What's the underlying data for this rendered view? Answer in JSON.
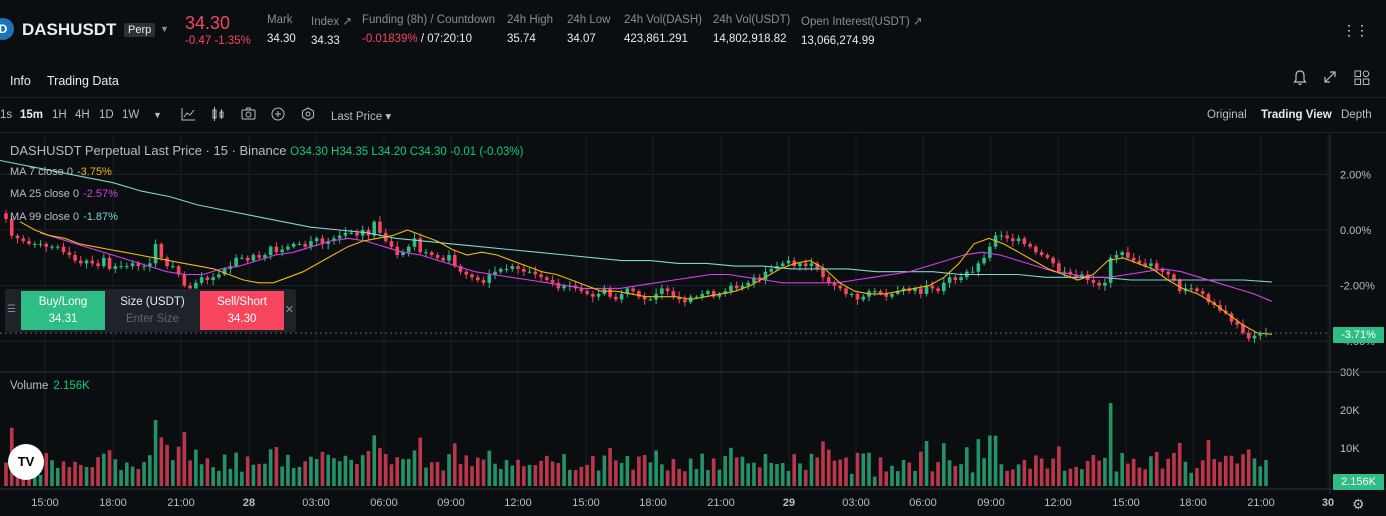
{
  "header": {
    "logo_glyph": "D",
    "symbol": "DASHUSDT",
    "badge": "Perp",
    "last_price": "34.30",
    "change": "-0.47",
    "change_pct": "-1.35%",
    "stats": [
      {
        "label": "Mark",
        "value": "34.30"
      },
      {
        "label": "Index ↗",
        "value": "34.33"
      },
      {
        "label": "Funding (8h) / Countdown",
        "value_neg": "-0.01839%",
        "value": " / 07:20:10"
      },
      {
        "label": "24h High",
        "value": "35.74"
      },
      {
        "label": "24h Low",
        "value": "34.07"
      },
      {
        "label": "24h Vol(DASH)",
        "value": "423,861.291"
      },
      {
        "label": "24h Vol(USDT)",
        "value": "14,802,918.82"
      },
      {
        "label": "Open Interest(USDT) ↗",
        "value": "13,066,274.99"
      }
    ]
  },
  "tabs": {
    "info": "Info",
    "trading_data": "Trading Data"
  },
  "toolbar": {
    "timeframes": [
      "1s",
      "15m",
      "1H",
      "4H",
      "1D",
      "1W"
    ],
    "active_timeframe": "15m",
    "price_type": "Last Price ▾",
    "views": [
      "Original",
      "Trading View",
      "Depth"
    ],
    "active_view": "Trading View"
  },
  "legend": {
    "title": "DASHUSDT Perpetual Last Price · 15 · Binance",
    "ohlc": "O34.30 H34.35 L34.20 C34.30 -0.01 (-0.03%)",
    "ma": [
      {
        "label": "MA 7 close 0",
        "value": "-3.75%",
        "color": "#f0b90b"
      },
      {
        "label": "MA 25 close 0",
        "value": "-2.57%",
        "color": "#d43ee8"
      },
      {
        "label": "MA 99 close 0",
        "value": "-1.87%",
        "color": "#7ad7d0"
      }
    ],
    "volume_label": "Volume",
    "volume_value": "2.156K"
  },
  "order_panel": {
    "buy_label": "Buy/Long",
    "buy_price": "34.31",
    "size_label": "Size (USDT)",
    "size_placeholder": "Enter Size",
    "sell_label": "Sell/Short",
    "sell_price": "34.30"
  },
  "price_axis": [
    "2.00%",
    "0.00%",
    "-2.00%",
    "-4.00%"
  ],
  "volume_axis": [
    "30K",
    "20K",
    "10K"
  ],
  "current_tag": "-3.71%",
  "volume_tag": "2.156K",
  "time_axis": [
    "15:00",
    "18:00",
    "21:00",
    "28",
    "03:00",
    "06:00",
    "09:00",
    "12:00",
    "15:00",
    "18:00",
    "21:00",
    "29",
    "03:00",
    "06:00",
    "09:00",
    "12:00",
    "15:00",
    "18:00",
    "21:00",
    "30"
  ],
  "colors": {
    "up": "#2ebd85",
    "down": "#f6465d",
    "ma7": "#f0b90b",
    "ma25": "#d43ee8",
    "ma99": "#7ad7d0"
  },
  "chart_data": {
    "type": "candlestick",
    "y_unit": "percent change",
    "y_ticks": [
      2.0,
      0.0,
      -2.0,
      -4.0
    ],
    "current_value": -3.71,
    "series_close_pct": [
      0.4,
      -0.2,
      -0.3,
      -0.4,
      -0.5,
      -0.5,
      -0.5,
      -0.6,
      -0.6,
      -0.6,
      -0.8,
      -0.9,
      -1.1,
      -1.2,
      -1.1,
      -1.2,
      -1.3,
      -1.0,
      -1.4,
      -1.3,
      -1.3,
      -1.3,
      -1.2,
      -1.3,
      -1.3,
      -1.2,
      -0.5,
      -1.0,
      -1.3,
      -1.3,
      -1.6,
      -2.0,
      -2.1,
      -1.9,
      -1.7,
      -1.8,
      -1.7,
      -1.6,
      -1.4,
      -1.3,
      -1.0,
      -1.0,
      -1.1,
      -0.9,
      -1.0,
      -0.9,
      -0.6,
      -0.8,
      -0.7,
      -0.6,
      -0.5,
      -0.5,
      -0.6,
      -0.4,
      -0.3,
      -0.5,
      -0.4,
      -0.3,
      -0.2,
      -0.1,
      -0.1,
      -0.2,
      -0.0,
      -0.2,
      0.3,
      -0.1,
      -0.4,
      -0.6,
      -0.9,
      -0.8,
      -0.6,
      -0.3,
      -0.8,
      -0.8,
      -0.9,
      -1.0,
      -1.1,
      -0.9,
      -1.3,
      -1.5,
      -1.6,
      -1.7,
      -1.8,
      -1.9,
      -1.6,
      -1.5,
      -1.4,
      -1.4,
      -1.3,
      -1.4,
      -1.5,
      -1.5,
      -1.6,
      -1.7,
      -1.8,
      -1.9,
      -2.1,
      -2.0,
      -2.0,
      -2.1,
      -2.2,
      -2.3,
      -2.4,
      -2.3,
      -2.1,
      -2.4,
      -2.5,
      -2.3,
      -2.1,
      -2.2,
      -2.4,
      -2.5,
      -2.5,
      -2.3,
      -2.1,
      -2.2,
      -2.4,
      -2.5,
      -2.6,
      -2.4,
      -2.4,
      -2.3,
      -2.2,
      -2.4,
      -2.3,
      -2.2,
      -2.0,
      -2.1,
      -2.0,
      -1.9,
      -1.7,
      -1.8,
      -1.5,
      -1.4,
      -1.3,
      -1.2,
      -1.1,
      -1.3,
      -1.2,
      -1.3,
      -1.2,
      -1.4,
      -1.7,
      -1.9,
      -2.0,
      -2.1,
      -2.3,
      -2.3,
      -2.5,
      -2.4,
      -2.2,
      -2.2,
      -2.3,
      -2.4,
      -2.3,
      -2.2,
      -2.1,
      -2.2,
      -2.1,
      -2.3,
      -2.0,
      -2.1,
      -2.2,
      -1.9,
      -1.7,
      -1.8,
      -1.7,
      -1.5,
      -1.5,
      -1.2,
      -1.0,
      -0.6,
      -0.2,
      -0.2,
      -0.3,
      -0.4,
      -0.3,
      -0.5,
      -0.6,
      -0.8,
      -0.9,
      -1.0,
      -1.2,
      -1.5,
      -1.5,
      -1.6,
      -1.7,
      -1.6,
      -1.8,
      -1.9,
      -2.0,
      -1.9,
      -1.0,
      -0.9,
      -0.8,
      -1.0,
      -1.1,
      -1.2,
      -1.3,
      -1.2,
      -1.4,
      -1.5,
      -1.6,
      -1.8,
      -2.2,
      -2.1,
      -2.1,
      -2.2,
      -2.3,
      -2.6,
      -2.7,
      -2.9,
      -3.0,
      -3.3,
      -3.4,
      -3.7,
      -3.9,
      -3.8,
      -3.7,
      -3.7
    ],
    "ma7_pct": [
      0.3,
      0.0,
      -0.2,
      -0.3,
      -0.5,
      -0.6,
      -0.7,
      -0.8,
      -0.9,
      -1.0,
      -1.1,
      -1.2,
      -1.3,
      -1.4,
      -1.6,
      -1.8,
      -1.9,
      -1.9,
      -1.7,
      -1.5,
      -1.2,
      -0.9,
      -0.6,
      -0.4,
      -0.3,
      -0.2,
      0.0,
      -0.2,
      -0.4,
      -0.7,
      -0.9,
      -0.8,
      -0.9,
      -1.1,
      -1.3,
      -1.5,
      -1.6,
      -1.8,
      -2.0,
      -2.2,
      -2.2,
      -2.3,
      -2.4,
      -2.4,
      -2.4,
      -2.5,
      -2.4,
      -2.3,
      -2.2,
      -2.0,
      -1.7,
      -1.4,
      -1.2,
      -1.1,
      -1.4,
      -1.9,
      -2.2,
      -2.3,
      -2.3,
      -2.2,
      -2.1,
      -2.0,
      -1.7,
      -1.2,
      -0.5,
      -0.3,
      -0.5,
      -0.8,
      -1.1,
      -1.4,
      -1.6,
      -1.8,
      -1.6,
      -1.1,
      -1.0,
      -1.2,
      -1.4,
      -1.8,
      -2.1,
      -2.3,
      -2.6,
      -3.0,
      -3.4,
      -3.7,
      -3.75
    ],
    "ma25_pct": [
      -0.1,
      -0.3,
      -0.5,
      -0.7,
      -0.9,
      -1.1,
      -1.3,
      -1.5,
      -1.6,
      -1.6,
      -1.4,
      -1.3,
      -1.1,
      -0.9,
      -0.8,
      -0.6,
      -0.4,
      -0.3,
      -0.4,
      -0.6,
      -0.8,
      -0.9,
      -1.1,
      -1.3,
      -1.5,
      -1.6,
      -1.7,
      -1.8,
      -1.9,
      -2.0,
      -2.1,
      -2.1,
      -2.1,
      -2.0,
      -1.9,
      -1.8,
      -1.7,
      -1.6,
      -1.6,
      -1.7,
      -1.8,
      -1.9,
      -1.9,
      -1.9,
      -1.9,
      -1.8,
      -1.7,
      -1.6,
      -1.5,
      -1.3,
      -1.1,
      -0.9,
      -0.8,
      -0.9,
      -1.1,
      -1.3,
      -1.5,
      -1.6,
      -1.7,
      -1.7,
      -1.6,
      -1.5,
      -1.4,
      -1.5,
      -1.7,
      -1.9,
      -2.1,
      -2.3,
      -2.57
    ],
    "ma99_pct": [
      2.5,
      2.3,
      2.1,
      1.9,
      1.7,
      1.4,
      1.2,
      0.9,
      0.7,
      0.5,
      0.3,
      0.1,
      0.0,
      -0.1,
      -0.3,
      -0.4,
      -0.5,
      -0.6,
      -0.7,
      -0.8,
      -0.9,
      -1.0,
      -1.1,
      -1.1,
      -1.2,
      -1.2,
      -1.3,
      -1.3,
      -1.4,
      -1.4,
      -1.4,
      -1.5,
      -1.5,
      -1.5,
      -1.6,
      -1.6,
      -1.6,
      -1.7,
      -1.7,
      -1.7,
      -1.8,
      -1.8,
      -1.8,
      -1.8,
      -1.8,
      -1.87
    ]
  }
}
